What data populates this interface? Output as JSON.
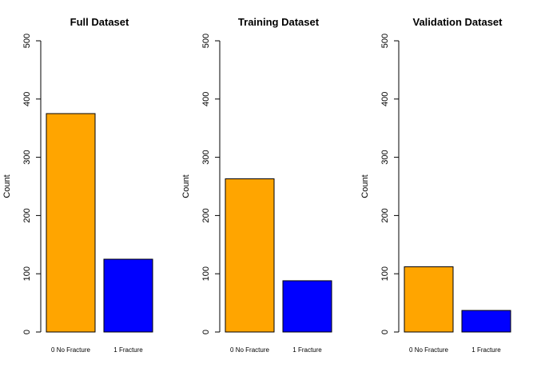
{
  "chart_data": [
    {
      "type": "bar",
      "title": "Full Dataset",
      "categories": [
        "0 No Fracture",
        "1 Fracture"
      ],
      "values": [
        375,
        125
      ],
      "colors": [
        "#FFA500",
        "#0000FF"
      ],
      "xlabel": "",
      "ylabel": "Count",
      "ylim": [
        0,
        500
      ],
      "yticks": [
        0,
        100,
        200,
        300,
        400,
        500
      ],
      "grid": false
    },
    {
      "type": "bar",
      "title": "Training Dataset",
      "categories": [
        "0 No Fracture",
        "1 Fracture"
      ],
      "values": [
        263,
        88
      ],
      "colors": [
        "#FFA500",
        "#0000FF"
      ],
      "xlabel": "",
      "ylabel": "Count",
      "ylim": [
        0,
        500
      ],
      "yticks": [
        0,
        100,
        200,
        300,
        400,
        500
      ],
      "grid": false
    },
    {
      "type": "bar",
      "title": "Validation Dataset",
      "categories": [
        "0 No Fracture",
        "1 Fracture"
      ],
      "values": [
        112,
        37
      ],
      "colors": [
        "#FFA500",
        "#0000FF"
      ],
      "xlabel": "",
      "ylabel": "Count",
      "ylim": [
        0,
        500
      ],
      "yticks": [
        0,
        100,
        200,
        300,
        400,
        500
      ],
      "grid": false
    }
  ]
}
